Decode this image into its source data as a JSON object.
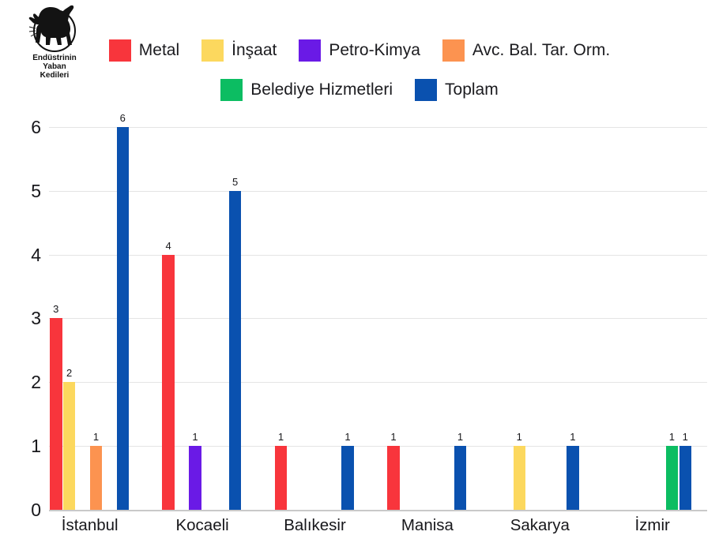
{
  "logo": {
    "icon": "wildcat-icon",
    "line1": "Endüstrinin",
    "line2": "Yaban",
    "line3": "Kedileri"
  },
  "chart_data": {
    "type": "bar",
    "title": "",
    "xlabel": "",
    "ylabel": "",
    "categories": [
      "İstanbul",
      "Kocaeli",
      "Balıkesir",
      "Manisa",
      "Sakarya",
      "İzmir"
    ],
    "series": [
      {
        "name": "Metal",
        "color": "#f8353c",
        "values": [
          3,
          4,
          1,
          1,
          0,
          0
        ]
      },
      {
        "name": "İnşaat",
        "color": "#fcd85e",
        "values": [
          2,
          0,
          0,
          0,
          1,
          0
        ]
      },
      {
        "name": "Petro-Kimya",
        "color": "#6a1ae6",
        "values": [
          0,
          1,
          0,
          0,
          0,
          0
        ]
      },
      {
        "name": "Avc. Bal. Tar. Orm.",
        "color": "#fc9350",
        "values": [
          1,
          0,
          0,
          0,
          0,
          0
        ]
      },
      {
        "name": "Belediye Hizmetleri",
        "color": "#0cbd62",
        "values": [
          0,
          0,
          0,
          0,
          0,
          1
        ]
      },
      {
        "name": "Toplam",
        "color": "#0a51af",
        "values": [
          6,
          5,
          1,
          1,
          1,
          1
        ]
      }
    ],
    "y_ticks": [
      0,
      1,
      2,
      3,
      4,
      5,
      6
    ],
    "ylim": [
      0,
      6
    ],
    "grid": true,
    "bar_value_labels": true,
    "legend_position": "top",
    "legend_rows": [
      [
        "Metal",
        "İnşaat",
        "Petro-Kimya",
        "Avc. Bal. Tar. Orm."
      ],
      [
        "Belediye Hizmetleri",
        "Toplam"
      ]
    ],
    "colors": {
      "grid": "#e4e4e4",
      "axis": "#c9c9c9",
      "text": "#17171b"
    }
  }
}
